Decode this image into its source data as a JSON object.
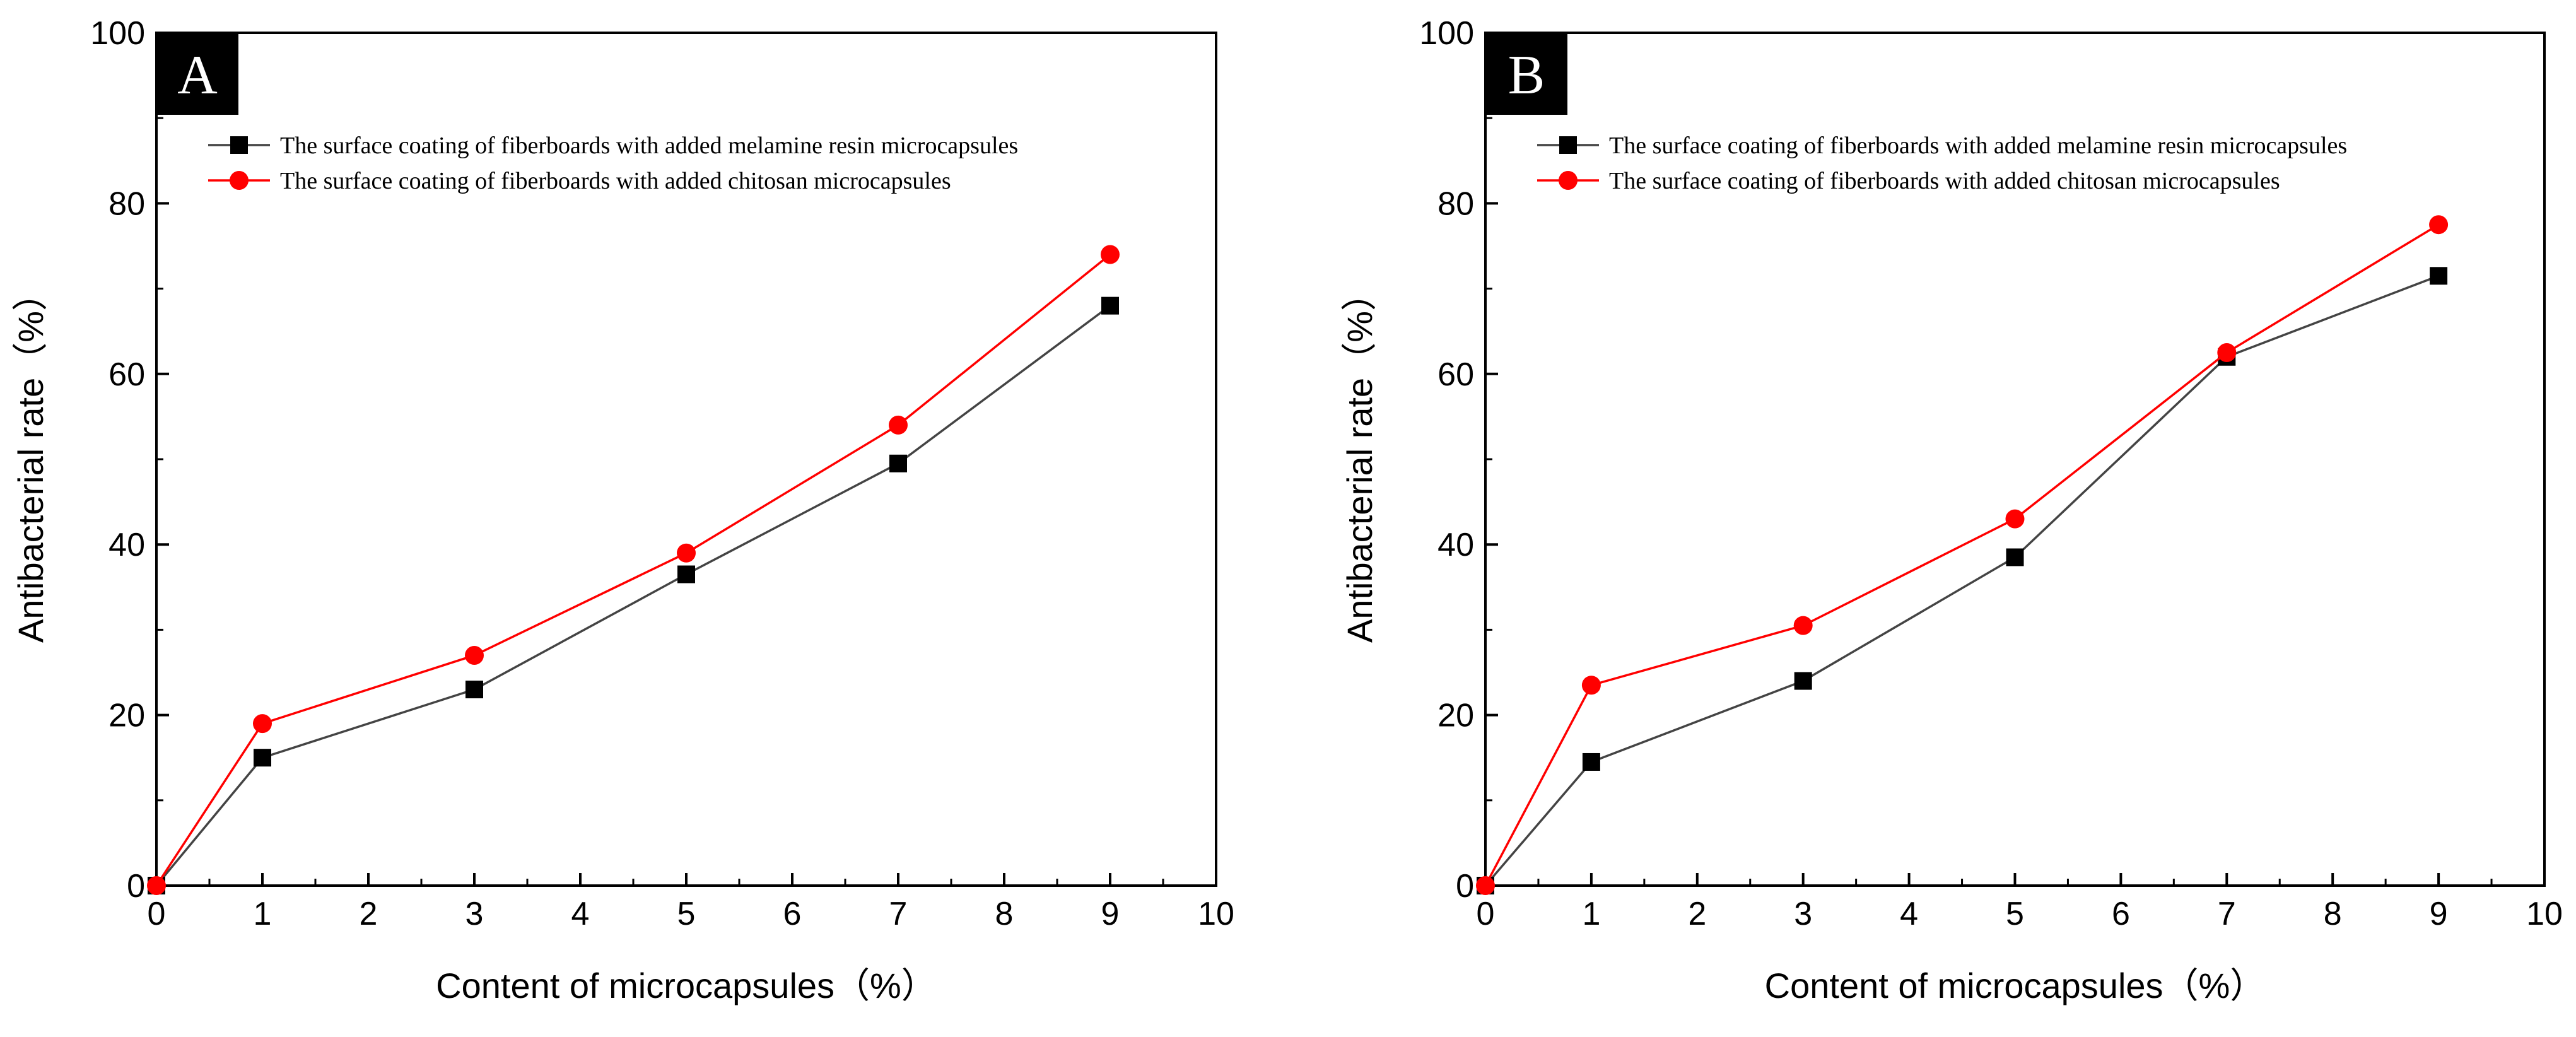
{
  "chart_data": [
    {
      "type": "line",
      "panel": "A",
      "xlabel": "Content of microcapsules（%）",
      "ylabel": "Antibacterial rate（%）",
      "xlim": [
        0,
        10
      ],
      "ylim": [
        0,
        100
      ],
      "xticks": [
        0,
        1,
        2,
        3,
        4,
        5,
        6,
        7,
        8,
        9,
        10
      ],
      "yticks": [
        0,
        20,
        40,
        60,
        80,
        100
      ],
      "legend_position": "top-left",
      "x": [
        0,
        1,
        3,
        5,
        7,
        9
      ],
      "series": [
        {
          "name": "The surface coating of fiberboards with added melamine resin microcapsules",
          "color": "#000000",
          "line_color": "#444444",
          "marker": "square",
          "values": [
            0,
            15,
            23,
            36.5,
            49.5,
            68
          ]
        },
        {
          "name": "The surface coating of fiberboards with added chitosan microcapsules",
          "color": "#ff0000",
          "line_color": "#ff0000",
          "marker": "circle",
          "values": [
            0,
            19,
            27,
            39,
            54,
            74
          ]
        }
      ]
    },
    {
      "type": "line",
      "panel": "B",
      "xlabel": "Content of microcapsules（%）",
      "ylabel": "Antibacterial rate（%）",
      "xlim": [
        0,
        10
      ],
      "ylim": [
        0,
        100
      ],
      "xticks": [
        0,
        1,
        2,
        3,
        4,
        5,
        6,
        7,
        8,
        9,
        10
      ],
      "yticks": [
        0,
        20,
        40,
        60,
        80,
        100
      ],
      "legend_position": "top-left",
      "x": [
        0,
        1,
        3,
        5,
        7,
        9
      ],
      "series": [
        {
          "name": "The surface coating of fiberboards with added melamine resin microcapsules",
          "color": "#000000",
          "line_color": "#444444",
          "marker": "square",
          "values": [
            0,
            14.5,
            24,
            38.5,
            62,
            71.5
          ]
        },
        {
          "name": "The surface coating of fiberboards with added chitosan microcapsules",
          "color": "#ff0000",
          "line_color": "#ff0000",
          "marker": "circle",
          "values": [
            0,
            23.5,
            30.5,
            43,
            62.5,
            77.5
          ]
        }
      ]
    }
  ]
}
